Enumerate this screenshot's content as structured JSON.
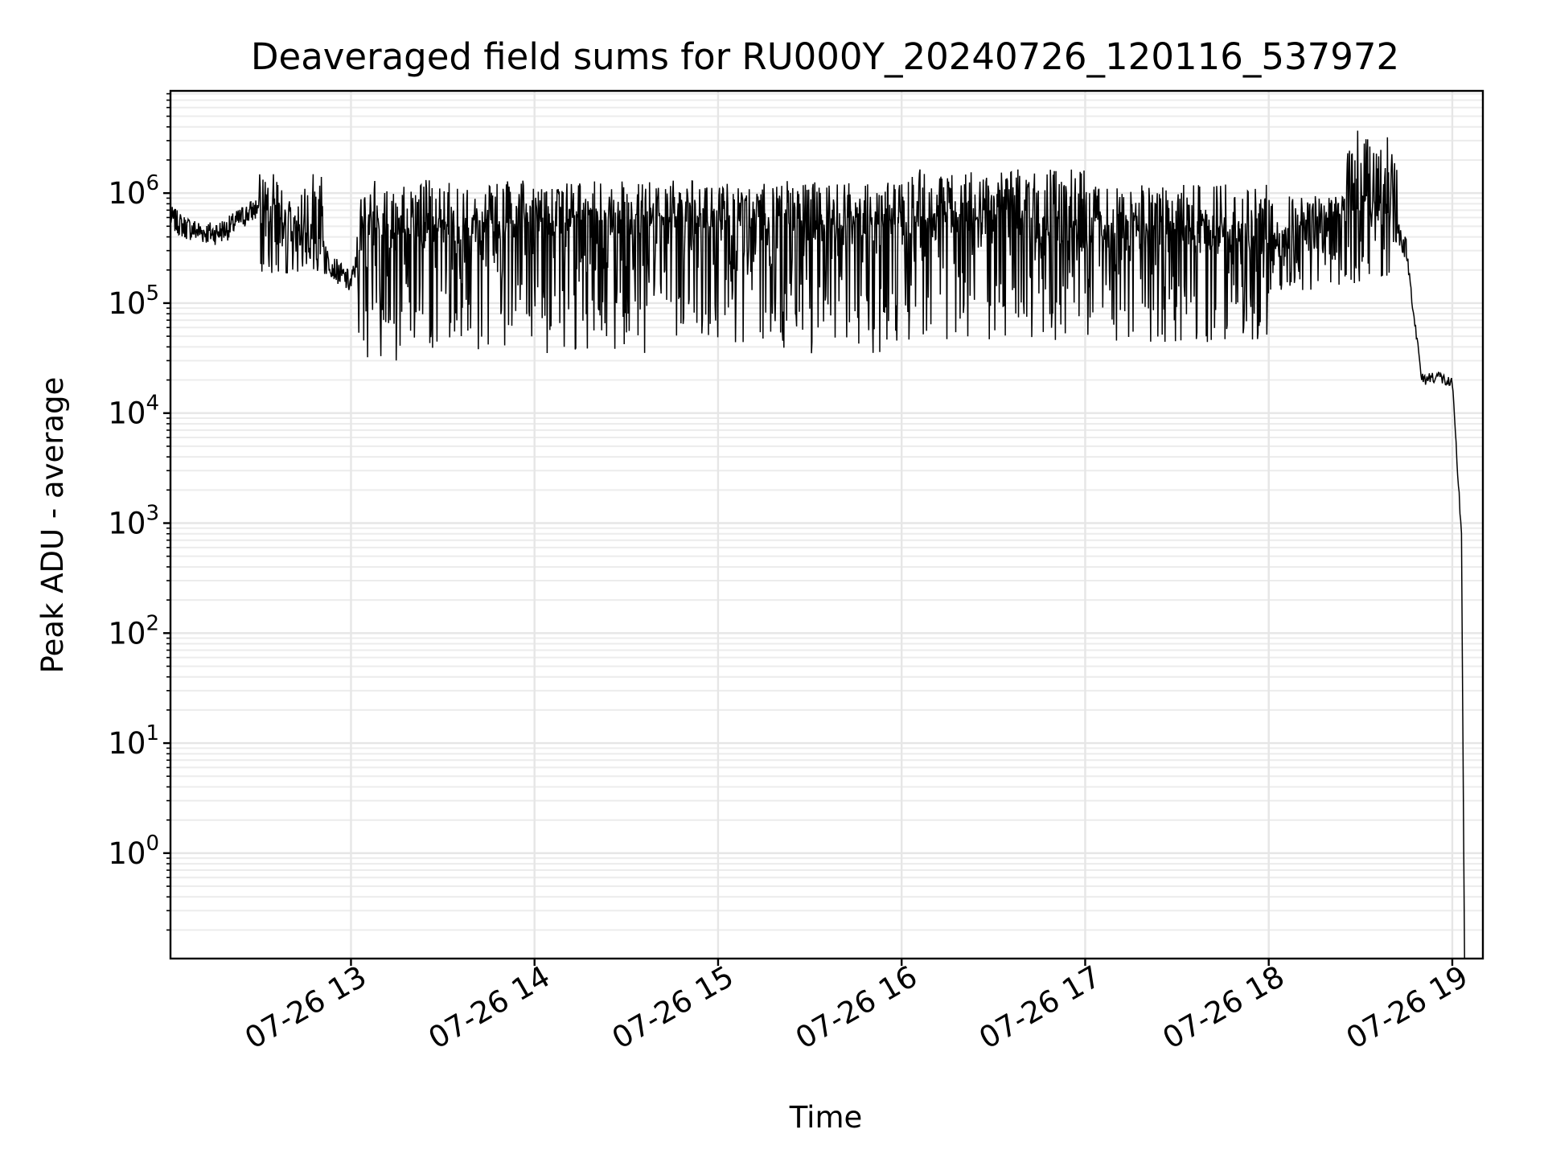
{
  "chart_data": {
    "type": "line",
    "title": "Deaveraged field sums for RU000Y_20240726_120116_537972",
    "xlabel": "Time",
    "ylabel": "Peak ADU - average",
    "x_axis_type": "datetime",
    "x_range": [
      "2024-07-26 12:01",
      "2024-07-26 19:10"
    ],
    "y_scale": "log",
    "ylim": [
      0.11,
      8500000
    ],
    "grid": true,
    "line_color": "#000000",
    "x_ticks": [
      {
        "label": "07-26 13",
        "value": "2024-07-26 13:00"
      },
      {
        "label": "07-26 14",
        "value": "2024-07-26 14:00"
      },
      {
        "label": "07-26 15",
        "value": "2024-07-26 15:00"
      },
      {
        "label": "07-26 16",
        "value": "2024-07-26 16:00"
      },
      {
        "label": "07-26 17",
        "value": "2024-07-26 17:00"
      },
      {
        "label": "07-26 18",
        "value": "2024-07-26 18:00"
      },
      {
        "label": "07-26 19",
        "value": "2024-07-26 19:00"
      }
    ],
    "y_ticks": [
      {
        "base": "10",
        "exp": "0",
        "value": 1
      },
      {
        "base": "10",
        "exp": "1",
        "value": 10
      },
      {
        "base": "10",
        "exp": "2",
        "value": 100
      },
      {
        "base": "10",
        "exp": "3",
        "value": 1000
      },
      {
        "base": "10",
        "exp": "4",
        "value": 10000
      },
      {
        "base": "10",
        "exp": "5",
        "value": 100000
      },
      {
        "base": "10",
        "exp": "6",
        "value": 1000000
      }
    ],
    "series": [
      {
        "points": [
          {
            "t": "2024-07-26 12:01",
            "y": 600000
          },
          {
            "t": "2024-07-26 12:05",
            "y": 500000
          },
          {
            "t": "2024-07-26 12:10",
            "y": 450000
          },
          {
            "t": "2024-07-26 12:15",
            "y": 430000
          },
          {
            "t": "2024-07-26 12:20",
            "y": 480000
          },
          {
            "t": "2024-07-26 12:25",
            "y": 620000
          },
          {
            "t": "2024-07-26 12:30",
            "y": 750000
          },
          {
            "t": "2024-07-26 12:35",
            "y": 700000
          },
          {
            "t": "2024-07-26 12:40",
            "y": 450000
          },
          {
            "t": "2024-07-26 12:45",
            "y": 380000
          },
          {
            "t": "2024-07-26 12:50",
            "y": 300000
          },
          {
            "t": "2024-07-26 12:55",
            "y": 200000
          },
          {
            "t": "2024-07-26 13:00",
            "y": 150000
          },
          {
            "t": "2024-07-26 13:05",
            "y": 500000
          },
          {
            "t": "2024-07-26 13:15",
            "y": 350000
          },
          {
            "t": "2024-07-26 13:30",
            "y": 450000
          },
          {
            "t": "2024-07-26 14:00",
            "y": 550000
          },
          {
            "t": "2024-07-26 14:30",
            "y": 520000
          },
          {
            "t": "2024-07-26 15:00",
            "y": 480000
          },
          {
            "t": "2024-07-26 15:30",
            "y": 450000
          },
          {
            "t": "2024-07-26 16:00",
            "y": 500000
          },
          {
            "t": "2024-07-26 16:30",
            "y": 550000
          },
          {
            "t": "2024-07-26 17:00",
            "y": 420000
          },
          {
            "t": "2024-07-26 17:30",
            "y": 400000
          },
          {
            "t": "2024-07-26 18:00",
            "y": 330000
          },
          {
            "t": "2024-07-26 18:15",
            "y": 450000
          },
          {
            "t": "2024-07-26 18:25",
            "y": 700000
          },
          {
            "t": "2024-07-26 18:35",
            "y": 800000
          },
          {
            "t": "2024-07-26 18:40",
            "y": 650000
          },
          {
            "t": "2024-07-26 18:45",
            "y": 300000
          },
          {
            "t": "2024-07-26 18:50",
            "y": 20000
          },
          {
            "t": "2024-07-26 18:55",
            "y": 22000
          },
          {
            "t": "2024-07-26 19:00",
            "y": 18000
          },
          {
            "t": "2024-07-26 19:03",
            "y": 800
          },
          {
            "t": "2024-07-26 19:04",
            "y": 0.11
          }
        ],
        "spikes": [
          {
            "from": "2024-07-26 12:30",
            "to": "2024-07-26 12:52",
            "high": 1500000,
            "low": 180000
          },
          {
            "from": "2024-07-26 13:02",
            "to": "2024-07-26 13:40",
            "high": 1400000,
            "low": 30000
          },
          {
            "from": "2024-07-26 13:40",
            "to": "2024-07-26 16:00",
            "high": 1300000,
            "low": 35000
          },
          {
            "from": "2024-07-26 16:00",
            "to": "2024-07-26 17:00",
            "high": 1650000,
            "low": 45000
          },
          {
            "from": "2024-07-26 17:00",
            "to": "2024-07-26 18:00",
            "high": 1200000,
            "low": 40000
          },
          {
            "from": "2024-07-26 18:00",
            "to": "2024-07-26 18:25",
            "high": 1000000,
            "low": 130000
          },
          {
            "from": "2024-07-26 18:25",
            "to": "2024-07-26 18:42",
            "high": 3800000,
            "low": 150000
          }
        ]
      }
    ]
  }
}
